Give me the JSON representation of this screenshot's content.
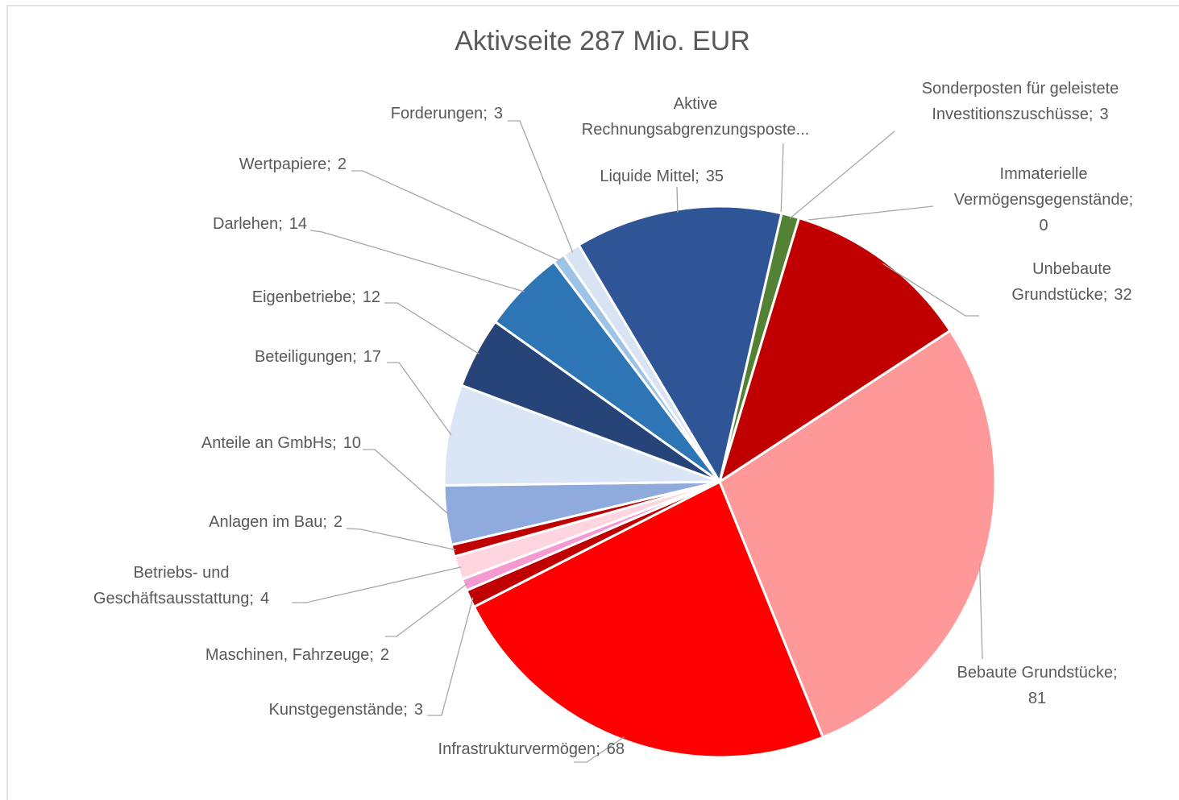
{
  "chart_data": {
    "type": "pie",
    "title": "Aktivseite  287 Mio. EUR",
    "start_angle": 13,
    "label_separator": ";",
    "categories": [
      "Aktive Rechnungsabgrenzungsposte...",
      "Sonderposten für geleistete Investitionszuschüsse",
      "Immaterielle Vermögensgegenstände",
      "Unbebaute Grundstücke",
      "Bebaute Grundstücke",
      "Infrastrukturvermögen",
      "Kunstgegenstände",
      "Maschinen, Fahrzeuge",
      "Betriebs- und Geschäftsausstattung",
      "Anlagen im Bau",
      "Anteile an GmbHs",
      "Beteiligungen",
      "Eigenbetriebe",
      "Darlehen",
      "Wertpapiere",
      "Forderungen",
      "Liquide Mittel"
    ],
    "values": [
      0,
      3,
      0,
      32,
      81,
      68,
      3,
      2,
      4,
      2,
      10,
      17,
      12,
      14,
      2,
      3,
      35
    ],
    "colors": [
      "#70ad47",
      "#548235",
      "#c00000",
      "#c00000",
      "#ff9999",
      "#ff0000",
      "#c00000",
      "#f49ad0",
      "#ffd5df",
      "#c00000",
      "#8faadc",
      "#dae6f5",
      "#264478",
      "#2e75b6",
      "#9dc3e6",
      "#dae3f3",
      "#2f5597"
    ]
  }
}
